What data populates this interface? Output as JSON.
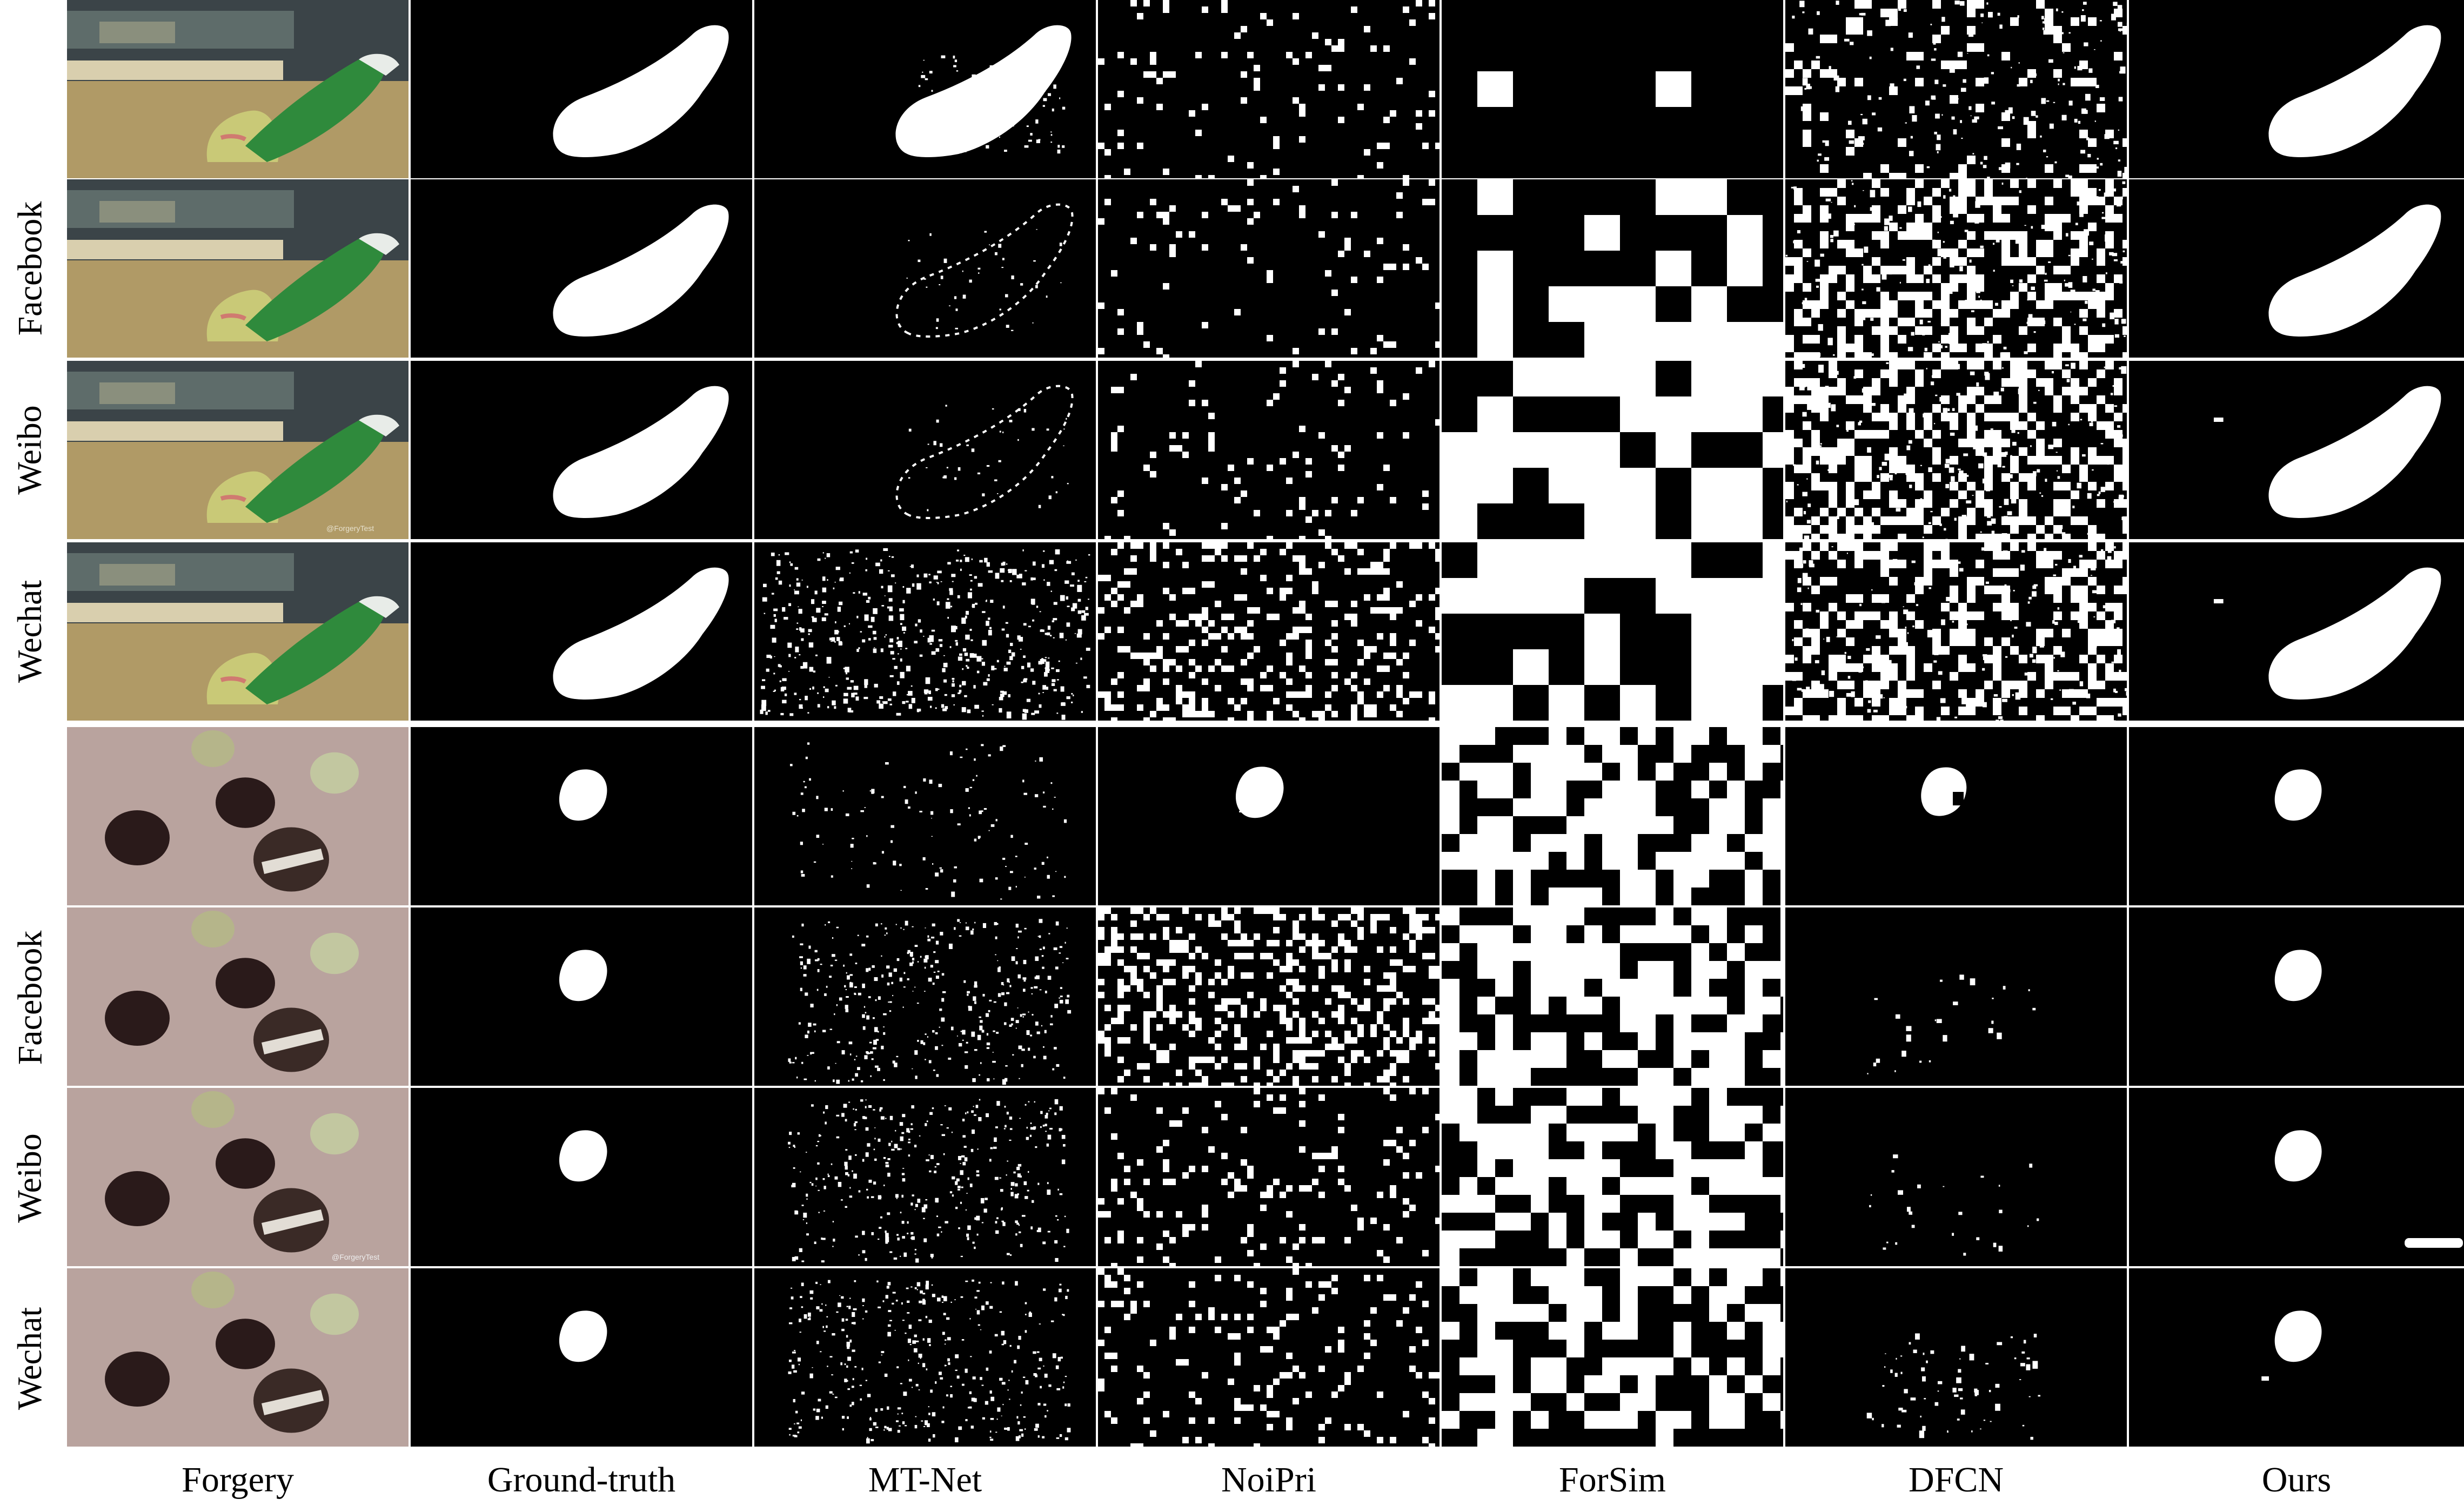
{
  "columns": [
    "Forgery",
    "Ground-truth",
    "MT-Net",
    "NoiPri",
    "ForSim",
    "DFCN",
    "Ours"
  ],
  "row_groups": [
    {
      "scene": "gallery",
      "rows": [
        "",
        "Facebook",
        "Weibo",
        "Wechat"
      ]
    },
    {
      "scene": "coins",
      "rows": [
        "",
        "Facebook",
        "Weibo",
        "Wechat"
      ]
    }
  ],
  "watermark_text": "@ForgeryTest",
  "colors": {
    "mask_fg": "#ffffff",
    "mask_bg": "#000000",
    "separator": "#ffffff"
  },
  "icons": {
    "gallery_scene": "gallery-poster-with-green-shoe-icon",
    "coins_scene": "coins-on-fabric-icon"
  }
}
